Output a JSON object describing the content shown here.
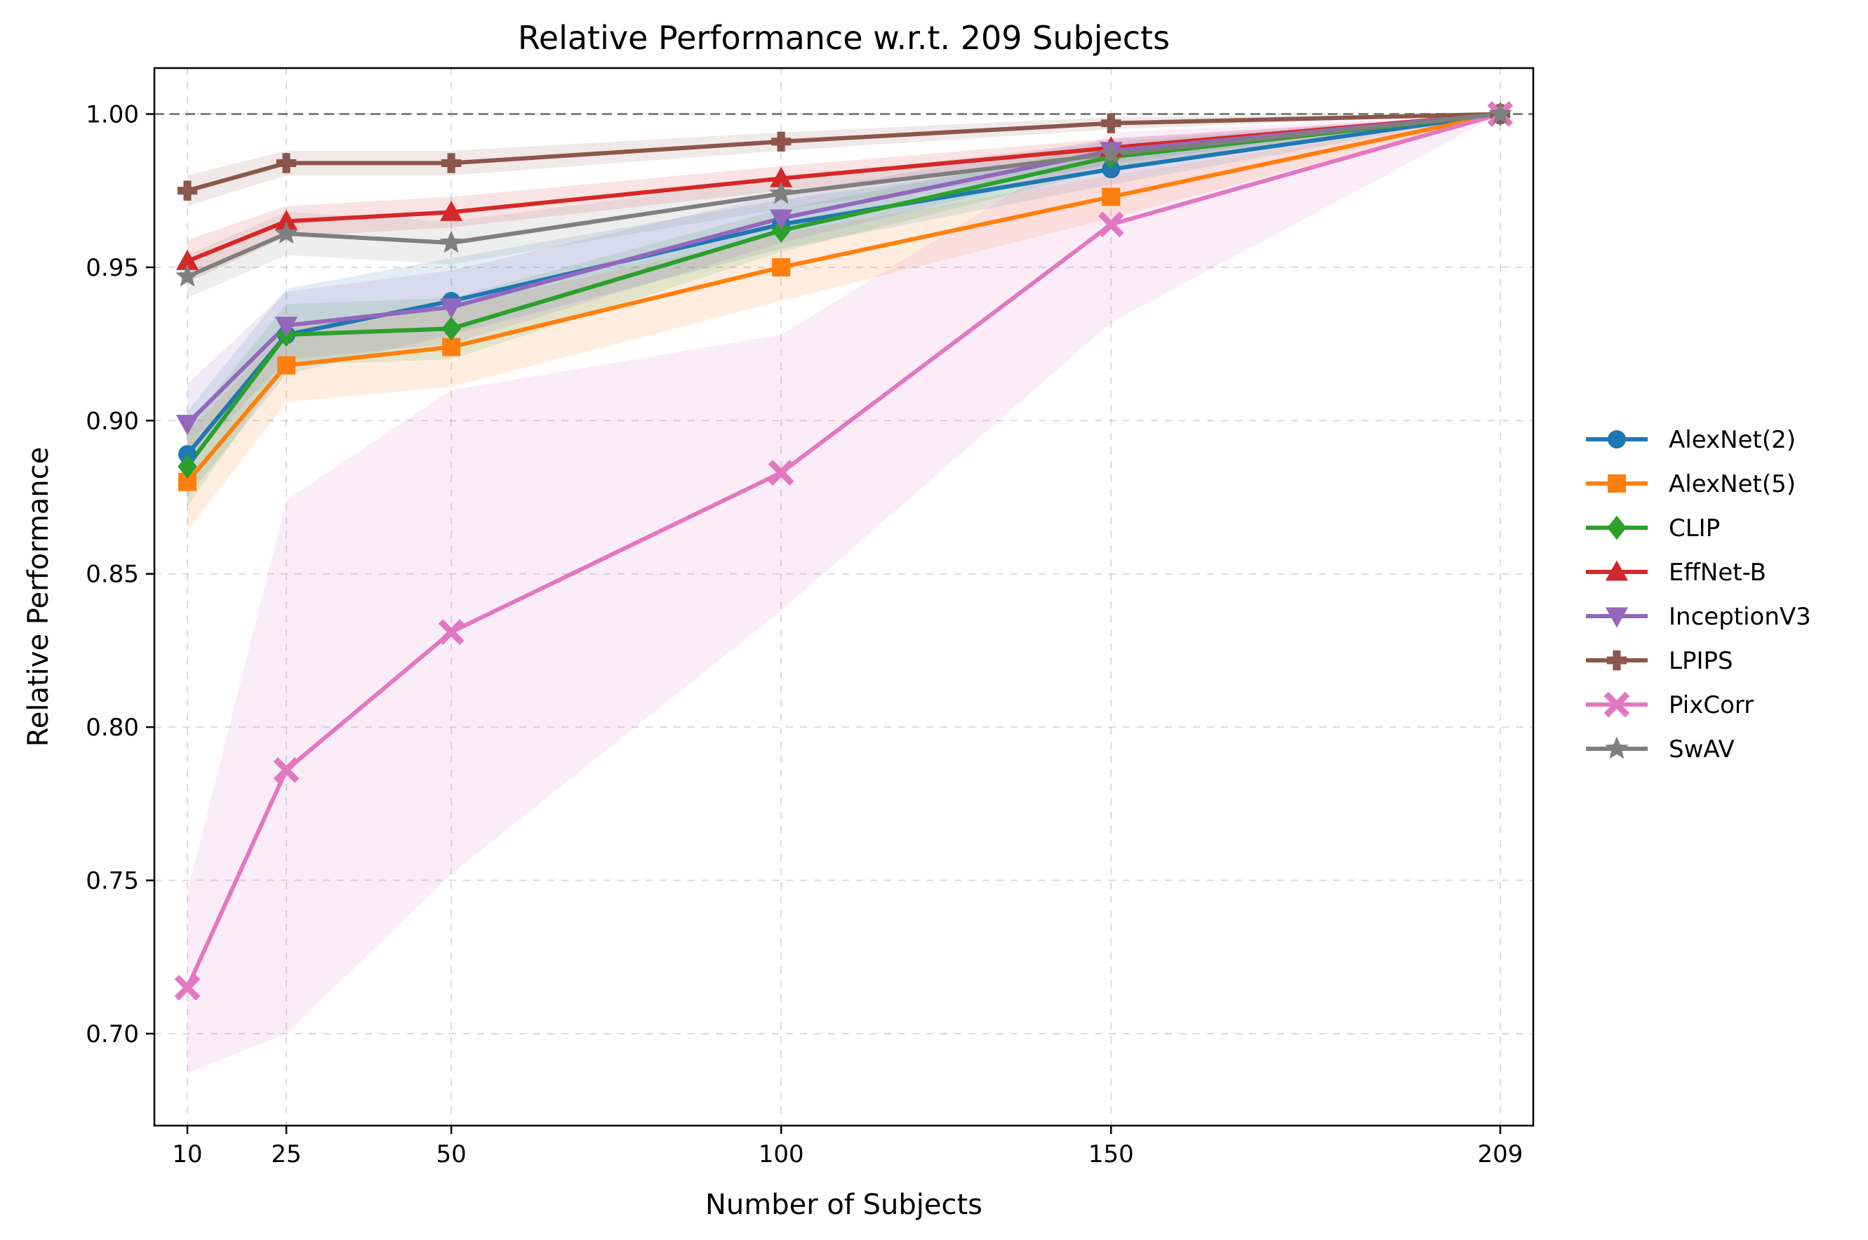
{
  "chart_data": {
    "type": "line",
    "title": "Relative Performance w.r.t. 209 Subjects",
    "xlabel": "Number of Subjects",
    "ylabel": "Relative Performance",
    "x": [
      10,
      25,
      50,
      100,
      150,
      209
    ],
    "x_tick_labels": [
      "10",
      "25",
      "50",
      "100",
      "150",
      "209"
    ],
    "xlim": [
      5,
      214
    ],
    "ylim": [
      0.67,
      1.015
    ],
    "y_ticks": [
      0.7,
      0.75,
      0.8,
      0.85,
      0.9,
      0.95,
      1.0
    ],
    "y_tick_labels": [
      "0.70",
      "0.75",
      "0.80",
      "0.85",
      "0.90",
      "0.95",
      "1.00"
    ],
    "grid": true,
    "reference_line": {
      "y": 1.0,
      "style": "dashed",
      "color": "#808080"
    },
    "legend_position": "right-outside",
    "series": [
      {
        "name": "AlexNet(2)",
        "color": "#1f77b4",
        "marker": "circle",
        "values": [
          0.889,
          0.928,
          0.939,
          0.964,
          0.982,
          1.0
        ],
        "lower": [
          0.875,
          0.915,
          0.928,
          0.956,
          0.977,
          1.0
        ],
        "upper": [
          0.903,
          0.943,
          0.953,
          0.972,
          0.987,
          1.0
        ]
      },
      {
        "name": "AlexNet(5)",
        "color": "#ff7f0e",
        "marker": "square",
        "values": [
          0.88,
          0.918,
          0.924,
          0.95,
          0.973,
          1.0
        ],
        "lower": [
          0.864,
          0.906,
          0.911,
          0.939,
          0.966,
          1.0
        ],
        "upper": [
          0.896,
          0.93,
          0.937,
          0.961,
          0.98,
          1.0
        ]
      },
      {
        "name": "CLIP",
        "color": "#2ca02c",
        "marker": "diamond",
        "values": [
          0.885,
          0.928,
          0.93,
          0.962,
          0.986,
          1.0
        ],
        "lower": [
          0.872,
          0.918,
          0.92,
          0.955,
          0.982,
          1.0
        ],
        "upper": [
          0.898,
          0.938,
          0.94,
          0.969,
          0.99,
          1.0
        ]
      },
      {
        "name": "EffNet-B",
        "color": "#d62728",
        "marker": "triangle-up",
        "values": [
          0.952,
          0.965,
          0.968,
          0.979,
          0.989,
          1.0
        ],
        "lower": [
          0.945,
          0.96,
          0.963,
          0.975,
          0.986,
          1.0
        ],
        "upper": [
          0.959,
          0.97,
          0.973,
          0.983,
          0.992,
          1.0
        ]
      },
      {
        "name": "InceptionV3",
        "color": "#9467bd",
        "marker": "triangle-down",
        "values": [
          0.899,
          0.931,
          0.937,
          0.966,
          0.988,
          1.0
        ],
        "lower": [
          0.886,
          0.92,
          0.925,
          0.958,
          0.984,
          1.0
        ],
        "upper": [
          0.912,
          0.942,
          0.949,
          0.974,
          0.992,
          1.0
        ]
      },
      {
        "name": "LPIPS",
        "color": "#8c564b",
        "marker": "plus",
        "values": [
          0.975,
          0.984,
          0.984,
          0.991,
          0.997,
          1.0
        ],
        "lower": [
          0.97,
          0.98,
          0.98,
          0.988,
          0.995,
          1.0
        ],
        "upper": [
          0.98,
          0.988,
          0.988,
          0.994,
          0.999,
          1.0
        ]
      },
      {
        "name": "PixCorr",
        "color": "#e377c2",
        "marker": "x",
        "values": [
          0.715,
          0.786,
          0.831,
          0.883,
          0.964,
          1.0
        ],
        "lower": [
          0.687,
          0.7,
          0.752,
          0.838,
          0.932,
          1.0
        ],
        "upper": [
          0.746,
          0.874,
          0.91,
          0.928,
          0.994,
          1.0
        ]
      },
      {
        "name": "SwAV",
        "color": "#7f7f7f",
        "marker": "star",
        "values": [
          0.947,
          0.961,
          0.958,
          0.974,
          0.987,
          1.0
        ],
        "lower": [
          0.94,
          0.954,
          0.951,
          0.969,
          0.983,
          1.0
        ],
        "upper": [
          0.954,
          0.968,
          0.965,
          0.979,
          0.991,
          1.0
        ]
      }
    ]
  }
}
